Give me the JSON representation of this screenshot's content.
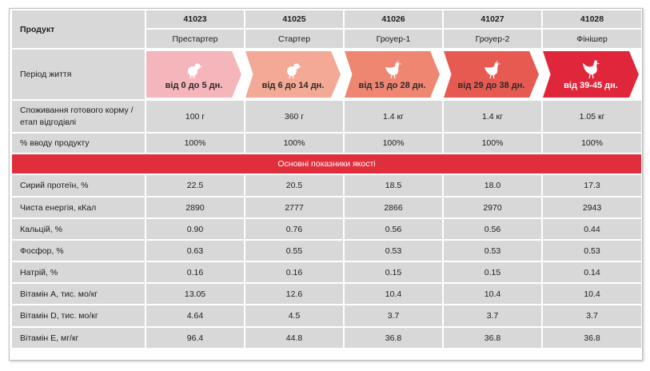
{
  "header": {
    "product_label": "Продукт",
    "codes": [
      "41023",
      "41025",
      "41026",
      "41027",
      "41028"
    ],
    "names": [
      "Престартер",
      "Стартер",
      "Гроуер-1",
      "Гроуер-2",
      "Фінішер"
    ]
  },
  "life_period": {
    "label": "Період життя",
    "stages": [
      {
        "text": "від 0 до 5 дн.",
        "color": "#f5b6bb",
        "text_color": "#2a2a2a",
        "icon": "chick-icon"
      },
      {
        "text": "від 6 до 14 дн.",
        "color": "#f3a995",
        "text_color": "#2a2a2a",
        "icon": "chick-icon"
      },
      {
        "text": "від 15 до 28 дн.",
        "color": "#ee8672",
        "text_color": "#2a2a2a",
        "icon": "hen-icon"
      },
      {
        "text": "від 29 до 38 дн.",
        "color": "#e65a52",
        "text_color": "#2a2a2a",
        "icon": "hen-icon"
      },
      {
        "text": "від 39-45 дн.",
        "color": "#e0263a",
        "text_color": "#ffffff",
        "icon": "rooster-icon"
      }
    ]
  },
  "consumption": {
    "label": "Споживання готового корму / етап відгодівлі",
    "values": [
      "100 г",
      "360 г",
      "1.4 кг",
      "1.4 кг",
      "1.05 кг"
    ]
  },
  "input_share": {
    "label": "% вводу продукту",
    "values": [
      "100%",
      "100%",
      "100%",
      "100%",
      "100%"
    ]
  },
  "section_title": "Основні показники якості",
  "quality_rows": [
    {
      "label": "Сирий протеїн, %",
      "values": [
        "22.5",
        "20.5",
        "18.5",
        "18.0",
        "17.3"
      ]
    },
    {
      "label": "Чиста енергія, кКал",
      "values": [
        "2890",
        "2777",
        "2866",
        "2970",
        "2943"
      ]
    },
    {
      "label": "Кальцій, %",
      "values": [
        "0.90",
        "0.76",
        "0.56",
        "0.56",
        "0.44"
      ]
    },
    {
      "label": "Фосфор, %",
      "values": [
        "0.63",
        "0.55",
        "0.53",
        "0.53",
        "0.53"
      ]
    },
    {
      "label": "Натрій, %",
      "values": [
        "0.16",
        "0.16",
        "0.15",
        "0.15",
        "0.14"
      ]
    },
    {
      "label": "Вітамін А, тис. мо/кг",
      "values": [
        "13.05",
        "12.6",
        "10.4",
        "10.4",
        "10.4"
      ]
    },
    {
      "label": "Вітамін D, тис. мо/кг",
      "values": [
        "4.64",
        "4.5",
        "3.7",
        "3.7",
        "3.7"
      ]
    },
    {
      "label": "Вітамін Е, мг/кг",
      "values": [
        "96.4",
        "44.8",
        "36.8",
        "36.8",
        "36.8"
      ]
    }
  ],
  "colors": {
    "section_bg": "#e02e3c",
    "cell_bg": "#d8d8d8"
  }
}
